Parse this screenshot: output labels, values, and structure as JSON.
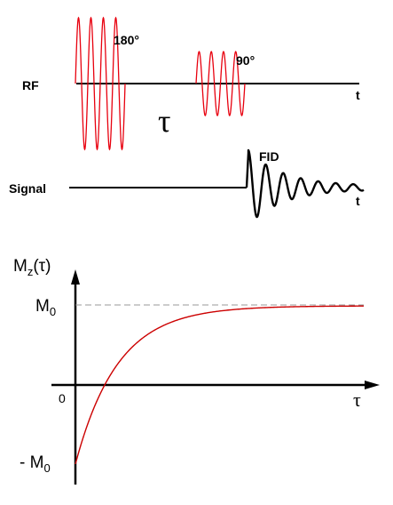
{
  "pulse_sequence": {
    "rf_label": "RF",
    "signal_label": "Signal",
    "time_label_rf": "t",
    "time_label_signal": "t",
    "pulse_180_label": "180°",
    "pulse_90_label": "90°",
    "delay_label": "τ",
    "fid_label": "FID"
  },
  "recovery_plot": {
    "y_axis_label": "M",
    "y_axis_subscript": "z",
    "y_axis_arg": "(τ)",
    "x_axis_label": "τ",
    "origin_label": "0",
    "m0_label": "M",
    "m0_subscript": "0",
    "neg_m0_label": "- M",
    "neg_m0_subscript": "0"
  },
  "colors": {
    "pulse": "#e8000e",
    "curve": "#cc0000",
    "axis": "#000000",
    "asymptote": "#999999"
  }
}
